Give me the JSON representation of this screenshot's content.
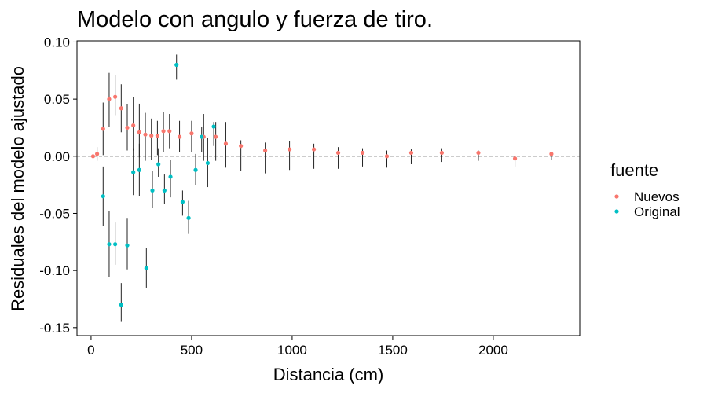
{
  "chart_data": {
    "type": "scatter",
    "title": "Modelo con angulo y fuerza de tiro.",
    "xlabel": "Distancia (cm)",
    "ylabel": "Residuales del modelo ajustado",
    "xlim": [
      -70,
      2430
    ],
    "ylim": [
      -0.157,
      0.101
    ],
    "x_ticks": [
      0,
      500,
      1000,
      1500,
      2000
    ],
    "x_tick_labels": [
      "0",
      "500",
      "1000",
      "1500",
      "2000"
    ],
    "y_ticks": [
      0.1,
      0.05,
      0.0,
      -0.05,
      -0.1,
      -0.15
    ],
    "y_tick_labels": [
      "0.10",
      "0.05",
      "0.00",
      "-0.05",
      "-0.10",
      "-0.15"
    ],
    "reference_line": {
      "y": 0,
      "style": "dashed"
    },
    "grid": false,
    "legend": {
      "title": "fuente",
      "position": "right",
      "entries": [
        {
          "label": "Nuevos",
          "color": "#F8766D"
        },
        {
          "label": "Original",
          "color": "#00BFC4"
        }
      ]
    },
    "series": [
      {
        "name": "Nuevos",
        "color": "#F8766D",
        "points": [
          {
            "x": 10,
            "y": 0.0,
            "lo": -0.002,
            "hi": 0.002
          },
          {
            "x": 30,
            "y": 0.002,
            "lo": -0.004,
            "hi": 0.008
          },
          {
            "x": 60,
            "y": 0.024,
            "lo": 0.001,
            "hi": 0.047
          },
          {
            "x": 90,
            "y": 0.05,
            "lo": 0.026,
            "hi": 0.073
          },
          {
            "x": 120,
            "y": 0.052,
            "lo": 0.036,
            "hi": 0.071
          },
          {
            "x": 150,
            "y": 0.042,
            "lo": 0.021,
            "hi": 0.063
          },
          {
            "x": 180,
            "y": 0.025,
            "lo": 0.005,
            "hi": 0.046
          },
          {
            "x": 210,
            "y": 0.027,
            "lo": 0.005,
            "hi": 0.052
          },
          {
            "x": 240,
            "y": 0.021,
            "lo": -0.001,
            "hi": 0.046
          },
          {
            "x": 270,
            "y": 0.019,
            "lo": -0.004,
            "hi": 0.038
          },
          {
            "x": 300,
            "y": 0.018,
            "lo": -0.003,
            "hi": 0.033
          },
          {
            "x": 330,
            "y": 0.018,
            "lo": 0.001,
            "hi": 0.031
          },
          {
            "x": 360,
            "y": 0.022,
            "lo": 0.004,
            "hi": 0.039
          },
          {
            "x": 390,
            "y": 0.022,
            "lo": 0.007,
            "hi": 0.037
          },
          {
            "x": 440,
            "y": 0.017,
            "lo": 0.004,
            "hi": 0.031
          },
          {
            "x": 500,
            "y": 0.02,
            "lo": 0.004,
            "hi": 0.031
          },
          {
            "x": 560,
            "y": 0.017,
            "lo": -0.004,
            "hi": 0.037
          },
          {
            "x": 620,
            "y": 0.017,
            "lo": -0.004,
            "hi": 0.03
          },
          {
            "x": 670,
            "y": 0.011,
            "lo": -0.01,
            "hi": 0.03
          },
          {
            "x": 745,
            "y": 0.009,
            "lo": -0.013,
            "hi": 0.014
          },
          {
            "x": 866,
            "y": 0.005,
            "lo": -0.015,
            "hi": 0.012
          },
          {
            "x": 987,
            "y": 0.006,
            "lo": -0.012,
            "hi": 0.013
          },
          {
            "x": 1108,
            "y": 0.006,
            "lo": -0.011,
            "hi": 0.011
          },
          {
            "x": 1229,
            "y": 0.003,
            "lo": -0.011,
            "hi": 0.008
          },
          {
            "x": 1350,
            "y": 0.003,
            "lo": -0.009,
            "hi": 0.007
          },
          {
            "x": 1471,
            "y": 0.0,
            "lo": -0.01,
            "hi": 0.005
          },
          {
            "x": 1592,
            "y": 0.003,
            "lo": -0.007,
            "hi": 0.006
          },
          {
            "x": 1744,
            "y": 0.003,
            "lo": -0.005,
            "hi": 0.007
          },
          {
            "x": 1926,
            "y": 0.003,
            "lo": -0.004,
            "hi": 0.005
          },
          {
            "x": 2108,
            "y": -0.002,
            "lo": -0.009,
            "hi": 0.0
          },
          {
            "x": 2289,
            "y": 0.002,
            "lo": -0.003,
            "hi": 0.004
          }
        ]
      },
      {
        "name": "Original",
        "color": "#00BFC4",
        "points": [
          {
            "x": 60,
            "y": -0.035,
            "lo": -0.061,
            "hi": -0.009
          },
          {
            "x": 90,
            "y": -0.077,
            "lo": -0.106,
            "hi": -0.048
          },
          {
            "x": 120,
            "y": -0.077,
            "lo": -0.095,
            "hi": -0.058
          },
          {
            "x": 150,
            "y": -0.13,
            "lo": -0.145,
            "hi": -0.111
          },
          {
            "x": 180,
            "y": -0.078,
            "lo": -0.099,
            "hi": -0.054
          },
          {
            "x": 210,
            "y": -0.014,
            "lo": -0.034,
            "hi": 0.007
          },
          {
            "x": 240,
            "y": -0.012,
            "lo": -0.035,
            "hi": 0.011
          },
          {
            "x": 275,
            "y": -0.098,
            "lo": -0.115,
            "hi": -0.08
          },
          {
            "x": 305,
            "y": -0.03,
            "lo": -0.045,
            "hi": -0.013
          },
          {
            "x": 335,
            "y": -0.007,
            "lo": -0.018,
            "hi": 0.007
          },
          {
            "x": 365,
            "y": -0.03,
            "lo": -0.042,
            "hi": -0.016
          },
          {
            "x": 395,
            "y": -0.018,
            "lo": -0.036,
            "hi": -0.003
          },
          {
            "x": 425,
            "y": 0.08,
            "lo": 0.067,
            "hi": 0.089
          },
          {
            "x": 455,
            "y": -0.04,
            "lo": -0.052,
            "hi": -0.03
          },
          {
            "x": 485,
            "y": -0.054,
            "lo": -0.068,
            "hi": -0.039
          },
          {
            "x": 520,
            "y": -0.012,
            "lo": -0.025,
            "hi": 0.002
          },
          {
            "x": 550,
            "y": 0.017,
            "lo": 0.004,
            "hi": 0.026
          },
          {
            "x": 580,
            "y": -0.006,
            "lo": -0.027,
            "hi": 0.016
          },
          {
            "x": 610,
            "y": 0.026,
            "lo": 0.009,
            "hi": 0.03
          }
        ]
      }
    ]
  }
}
